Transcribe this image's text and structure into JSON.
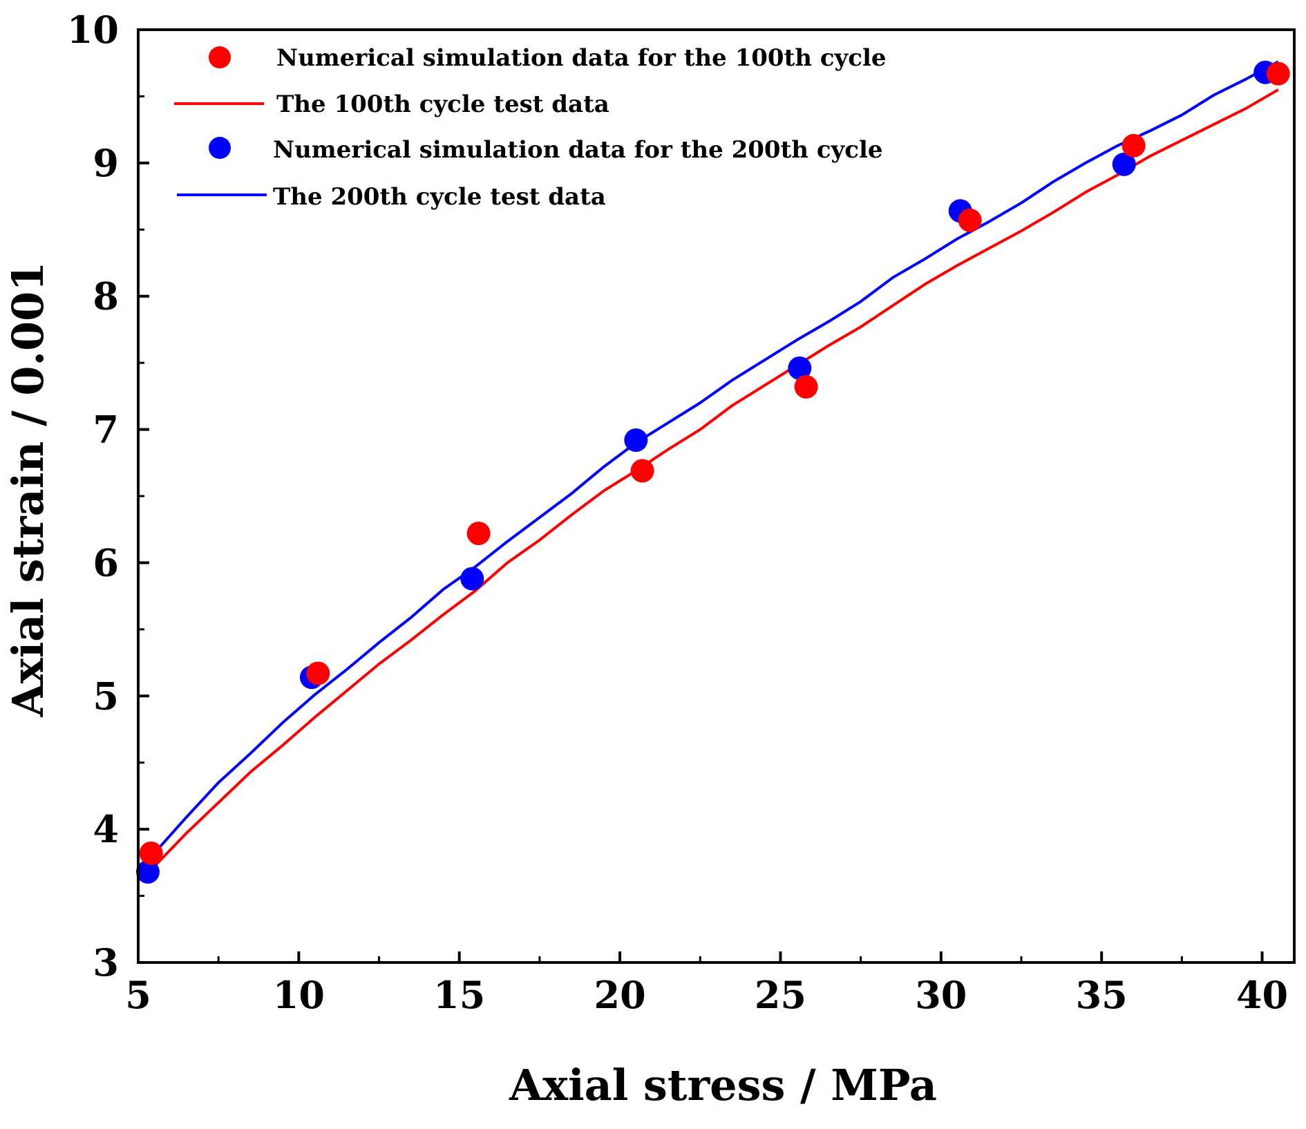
{
  "chart_data": {
    "type": "line",
    "title": "",
    "xlabel": "Axial stress / MPa",
    "ylabel": "Axial strain / 0.001",
    "xlim": [
      5,
      41
    ],
    "ylim": [
      3,
      10
    ],
    "xticks": [
      5,
      10,
      15,
      20,
      25,
      30,
      35,
      40
    ],
    "yticks": [
      3,
      4,
      5,
      6,
      7,
      8,
      9,
      10
    ],
    "legend_position": "top-left",
    "series": [
      {
        "name": "Numerical simulation data for the 100th cycle",
        "kind": "scatter",
        "color": "#ff0000",
        "x": [
          5.4,
          10.6,
          15.6,
          20.7,
          25.8,
          30.9,
          36.0,
          40.5
        ],
        "y": [
          3.82,
          5.17,
          6.22,
          6.69,
          7.32,
          8.57,
          9.13,
          9.67
        ]
      },
      {
        "name": "The 100th cycle test data",
        "kind": "line",
        "color": "#ff0000",
        "x": [
          5.5,
          6.5,
          7.5,
          8.5,
          9.5,
          10.5,
          11.5,
          12.5,
          13.5,
          14.5,
          15.5,
          16.5,
          17.5,
          18.5,
          19.5,
          20.5,
          21.5,
          22.5,
          23.5,
          24.5,
          25.5,
          26.5,
          27.5,
          28.5,
          29.5,
          30.5,
          31.5,
          32.5,
          33.5,
          34.5,
          35.5,
          36.5,
          37.5,
          38.5,
          39.5,
          40.5
        ],
        "y": [
          3.72,
          3.97,
          4.2,
          4.43,
          4.63,
          4.84,
          5.04,
          5.24,
          5.42,
          5.61,
          5.79,
          6.0,
          6.17,
          6.36,
          6.54,
          6.69,
          6.85,
          7.0,
          7.18,
          7.33,
          7.48,
          7.63,
          7.77,
          7.93,
          8.09,
          8.23,
          8.36,
          8.49,
          8.63,
          8.78,
          8.91,
          9.05,
          9.17,
          9.29,
          9.41,
          9.55
        ]
      },
      {
        "name": "Numerical simulation data for the 200th cycle",
        "kind": "scatter",
        "color": "#0000ff",
        "x": [
          5.3,
          10.4,
          15.4,
          20.5,
          25.6,
          30.6,
          35.7,
          40.1
        ],
        "y": [
          3.68,
          5.14,
          5.88,
          6.92,
          7.46,
          8.64,
          8.99,
          9.68
        ]
      },
      {
        "name": "The 200th cycle test data",
        "kind": "line",
        "color": "#0000ff",
        "x": [
          5.5,
          6.5,
          7.5,
          8.5,
          9.5,
          10.5,
          11.5,
          12.5,
          13.5,
          14.5,
          15.5,
          16.5,
          17.5,
          18.5,
          19.5,
          20.5,
          21.5,
          22.5,
          23.5,
          24.5,
          25.5,
          26.5,
          27.5,
          28.5,
          29.5,
          30.5,
          31.5,
          32.5,
          33.5,
          34.5,
          35.5,
          36.5,
          37.5,
          38.5,
          39.5,
          40.5
        ],
        "y": [
          3.82,
          4.09,
          4.35,
          4.57,
          4.8,
          5.01,
          5.2,
          5.4,
          5.59,
          5.8,
          5.97,
          6.16,
          6.34,
          6.52,
          6.72,
          6.9,
          7.05,
          7.2,
          7.37,
          7.52,
          7.67,
          7.81,
          7.96,
          8.14,
          8.28,
          8.43,
          8.56,
          8.7,
          8.86,
          9.0,
          9.13,
          9.24,
          9.36,
          9.51,
          9.63,
          9.76
        ]
      }
    ]
  }
}
